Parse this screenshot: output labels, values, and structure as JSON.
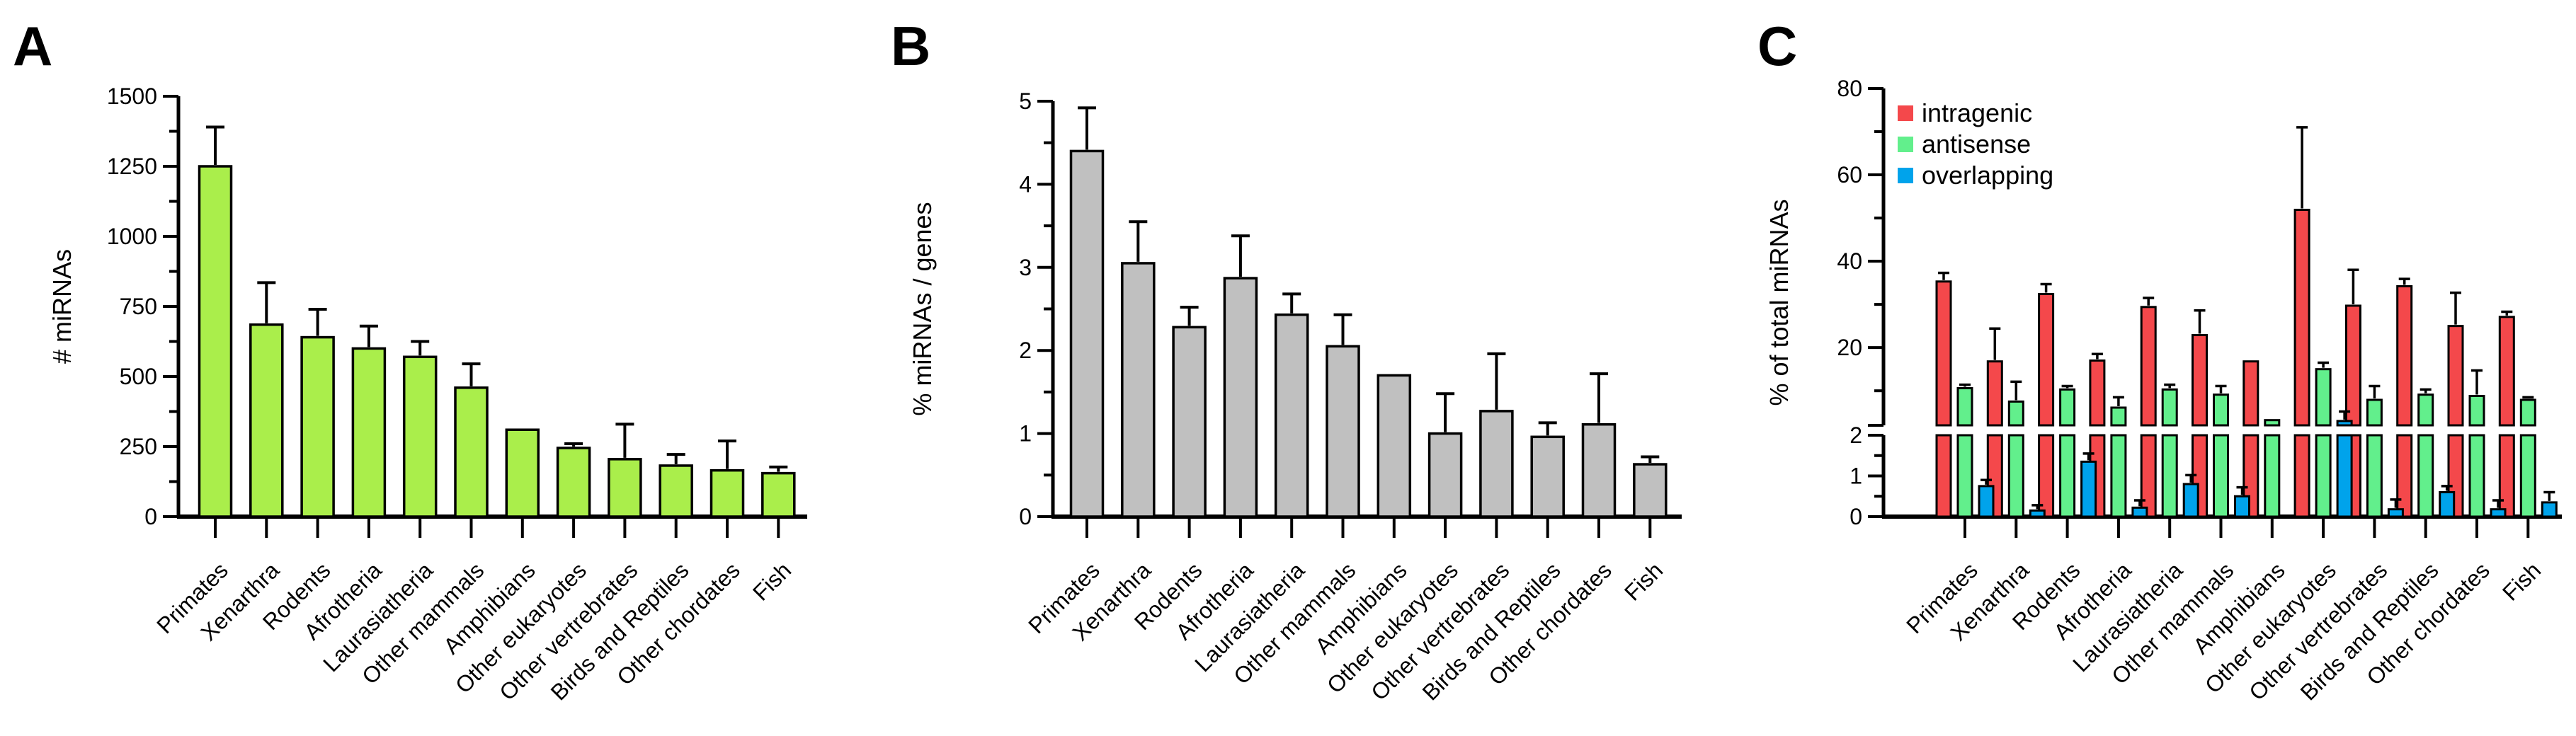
{
  "figure_background": "#ffffff",
  "categories": [
    "Primates",
    "Xenarthra",
    "Rodents",
    "Afrotheria",
    "Laurasiatheria",
    "Other mammals",
    "Amphibians",
    "Other eukaryotes",
    "Other vertrebrates",
    "Birds and Reptiles",
    "Other chordates",
    "Fish"
  ],
  "chart_data": [
    {
      "panel_label": "A",
      "type": "bar",
      "ylabel": "# miRNAs",
      "ylim": [
        0,
        1500
      ],
      "yticks": [
        0,
        250,
        500,
        750,
        1000,
        1250,
        1500
      ],
      "minor_tick_step": 125,
      "grid": false,
      "bar_color": "#AAEE4B",
      "bar_outline": "#000000",
      "error_bars": "upper",
      "categories": [
        "Primates",
        "Xenarthra",
        "Rodents",
        "Afrotheria",
        "Laurasiatheria",
        "Other mammals",
        "Amphibians",
        "Other eukaryotes",
        "Other vertrebrates",
        "Birds and Reptiles",
        "Other chordates",
        "Fish"
      ],
      "values": [
        1250,
        685,
        640,
        600,
        570,
        460,
        310,
        245,
        205,
        182,
        165,
        155
      ],
      "errors": [
        140,
        150,
        100,
        80,
        55,
        85,
        0,
        15,
        125,
        40,
        105,
        22
      ]
    },
    {
      "panel_label": "B",
      "type": "bar",
      "ylabel": "% miRNAs / genes",
      "ylim": [
        0,
        5
      ],
      "yticks": [
        0,
        1,
        2,
        3,
        4,
        5
      ],
      "minor_tick_step": 0.5,
      "grid": false,
      "bar_color": "#C0C0C0",
      "bar_outline": "#000000",
      "error_bars": "upper",
      "categories": [
        "Primates",
        "Xenarthra",
        "Rodents",
        "Afrotheria",
        "Laurasiatheria",
        "Other mammals",
        "Amphibians",
        "Other eukaryotes",
        "Other vertrebrates",
        "Birds and Reptiles",
        "Other chordates",
        "Fish"
      ],
      "values": [
        4.4,
        3.05,
        2.28,
        2.87,
        2.43,
        2.05,
        1.7,
        1.0,
        1.27,
        0.96,
        1.11,
        0.63
      ],
      "errors": [
        0.52,
        0.5,
        0.24,
        0.51,
        0.25,
        0.38,
        0,
        0.48,
        0.69,
        0.17,
        0.61,
        0.09
      ]
    },
    {
      "panel_label": "C",
      "type": "bar",
      "grouped": true,
      "ylabel": "% of total miRNAs",
      "axis_break": {
        "lower_range": [
          0,
          2
        ],
        "upper_range": [
          2,
          80
        ],
        "lower_ticks": [
          0,
          1,
          2
        ],
        "lower_minor_ticks": [
          0.5,
          1.5
        ],
        "upper_ticks": [
          20,
          40,
          60,
          80
        ],
        "upper_minor_ticks": [
          10,
          30,
          50,
          70
        ]
      },
      "legend_position": "top-left-inside",
      "error_bars": "upper",
      "categories": [
        "Primates",
        "Xenarthra",
        "Rodents",
        "Afrotheria",
        "Laurasiatheria",
        "Other mammals",
        "Amphibians",
        "Other eukaryotes",
        "Other vertrebrates",
        "Birds and Reptiles",
        "Other chordates",
        "Fish"
      ],
      "series": [
        {
          "name": "intragenic",
          "color": "#F4484B",
          "values": [
            35.3,
            16.8,
            32.4,
            17.0,
            29.4,
            22.9,
            16.8,
            51.9,
            29.7,
            34.2,
            25.0,
            27.1
          ],
          "errors": [
            2.0,
            7.6,
            2.3,
            1.5,
            2.1,
            5.7,
            0,
            19.1,
            8.3,
            1.7,
            7.7,
            1.2
          ]
        },
        {
          "name": "antisense",
          "color": "#62EF8C",
          "values": [
            10.6,
            7.5,
            10.3,
            6.1,
            10.3,
            9.1,
            3.2,
            15.0,
            7.9,
            9.1,
            8.8,
            7.9
          ],
          "errors": [
            0.8,
            4.6,
            0.8,
            2.4,
            1.1,
            2.0,
            0,
            1.5,
            3.2,
            1.2,
            5.9,
            0.6
          ]
        },
        {
          "name": "overlapping",
          "color": "#00A3EB",
          "values": [
            0.75,
            0.15,
            1.35,
            0.22,
            0.8,
            0.5,
            0,
            3.0,
            0.18,
            0.6,
            0.18,
            0.35
          ],
          "errors": [
            0.15,
            0.13,
            0.2,
            0.18,
            0.22,
            0.22,
            0,
            2.2,
            0.24,
            0.15,
            0.22,
            0.25
          ]
        }
      ]
    }
  ]
}
